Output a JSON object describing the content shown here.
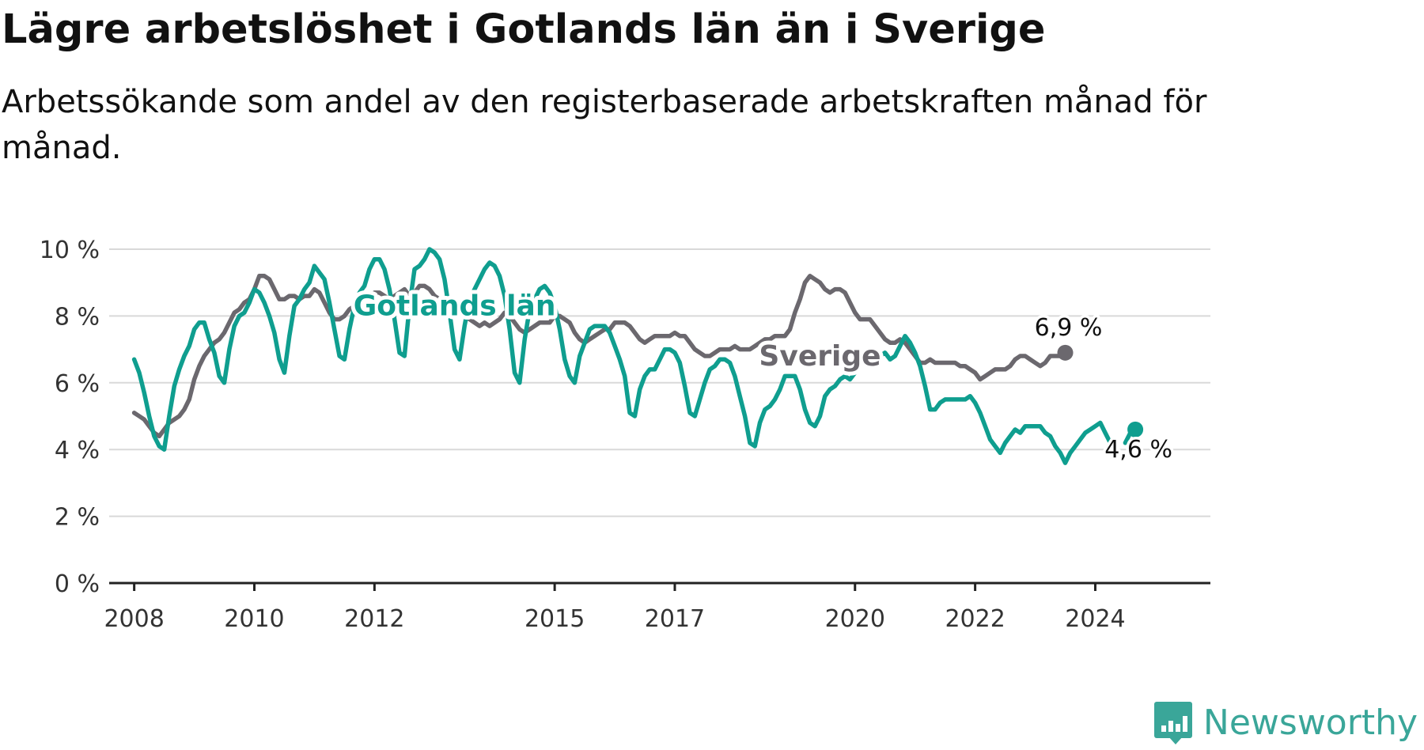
{
  "title": "Lägre arbetslöshet i Gotlands län än i Sverige",
  "subtitle": "Arbetssökande som andel av den registerbaserade arbetskraften månad för månad.",
  "logo": {
    "text": "Newsworthy",
    "icon": "chat-bar-chart-icon",
    "color": "#3aa699"
  },
  "chart_data": {
    "type": "line",
    "x_ticks": [
      "2008",
      "2010",
      "2012",
      "2015",
      "2017",
      "2020",
      "2022",
      "2024"
    ],
    "y_ticks": [
      "0 %",
      "2 %",
      "4 %",
      "6 %",
      "8 %",
      "10 %"
    ],
    "ylim": [
      0,
      10
    ],
    "xlim": [
      "2007-08",
      "2025-12"
    ],
    "grid": true,
    "x_start": "2008-01",
    "series": [
      {
        "name": "Sverige",
        "color": "#6b686e",
        "end_label": "6,9 %",
        "values": [
          5.1,
          5.0,
          4.9,
          4.7,
          4.5,
          4.4,
          4.6,
          4.8,
          4.9,
          5.0,
          5.2,
          5.5,
          6.1,
          6.5,
          6.8,
          7.0,
          7.2,
          7.3,
          7.5,
          7.8,
          8.1,
          8.2,
          8.4,
          8.5,
          8.8,
          9.2,
          9.2,
          9.1,
          8.8,
          8.5,
          8.5,
          8.6,
          8.6,
          8.5,
          8.6,
          8.6,
          8.8,
          8.7,
          8.4,
          8.1,
          7.9,
          7.9,
          8.0,
          8.2,
          8.3,
          8.2,
          8.3,
          8.6,
          8.7,
          8.7,
          8.6,
          8.5,
          8.6,
          8.7,
          8.8,
          8.6,
          8.7,
          8.9,
          8.9,
          8.8,
          8.6,
          8.5,
          8.4,
          8.3,
          8.2,
          8.1,
          8.0,
          7.9,
          7.8,
          7.7,
          7.8,
          7.7,
          7.8,
          7.9,
          8.1,
          8.0,
          7.8,
          7.6,
          7.5,
          7.6,
          7.7,
          7.8,
          7.8,
          7.8,
          8.0,
          8.0,
          7.9,
          7.8,
          7.5,
          7.3,
          7.2,
          7.3,
          7.4,
          7.5,
          7.6,
          7.6,
          7.8,
          7.8,
          7.8,
          7.7,
          7.5,
          7.3,
          7.2,
          7.3,
          7.4,
          7.4,
          7.4,
          7.4,
          7.5,
          7.4,
          7.4,
          7.2,
          7.0,
          6.9,
          6.8,
          6.8,
          6.9,
          7.0,
          7.0,
          7.0,
          7.1,
          7.0,
          7.0,
          7.0,
          7.1,
          7.2,
          7.3,
          7.3,
          7.4,
          7.4,
          7.4,
          7.6,
          8.1,
          8.5,
          9.0,
          9.2,
          9.1,
          9.0,
          8.8,
          8.7,
          8.8,
          8.8,
          8.7,
          8.4,
          8.1,
          7.9,
          7.9,
          7.9,
          7.7,
          7.5,
          7.3,
          7.2,
          7.2,
          7.3,
          7.2,
          7.0,
          6.8,
          6.6,
          6.6,
          6.7,
          6.6,
          6.6,
          6.6,
          6.6,
          6.6,
          6.5,
          6.5,
          6.4,
          6.3,
          6.1,
          6.2,
          6.3,
          6.4,
          6.4,
          6.4,
          6.5,
          6.7,
          6.8,
          6.8,
          6.7,
          6.6,
          6.5,
          6.6,
          6.8,
          6.8,
          6.8,
          6.9
        ]
      },
      {
        "name": "Gotlands län",
        "color": "#0f9e8f",
        "end_label": "4,6 %",
        "values": [
          6.7,
          6.3,
          5.7,
          5.0,
          4.4,
          4.1,
          4.0,
          5.0,
          5.9,
          6.4,
          6.8,
          7.1,
          7.6,
          7.8,
          7.8,
          7.3,
          6.9,
          6.2,
          6.0,
          7.0,
          7.7,
          8.0,
          8.1,
          8.4,
          8.8,
          8.7,
          8.4,
          8.0,
          7.5,
          6.7,
          6.3,
          7.4,
          8.3,
          8.5,
          8.8,
          9.0,
          9.5,
          9.3,
          9.1,
          8.4,
          7.6,
          6.8,
          6.7,
          7.6,
          8.3,
          8.7,
          8.9,
          9.4,
          9.7,
          9.7,
          9.4,
          8.8,
          7.9,
          6.9,
          6.8,
          8.3,
          9.4,
          9.5,
          9.7,
          10.0,
          9.9,
          9.7,
          9.1,
          8.1,
          7.0,
          6.7,
          7.7,
          8.5,
          8.8,
          9.1,
          9.4,
          9.6,
          9.5,
          9.2,
          8.6,
          7.6,
          6.3,
          6.0,
          7.3,
          8.2,
          8.5,
          8.8,
          8.9,
          8.7,
          8.3,
          7.6,
          6.7,
          6.2,
          6.0,
          6.8,
          7.2,
          7.6,
          7.7,
          7.7,
          7.7,
          7.5,
          7.1,
          6.7,
          6.2,
          5.1,
          5.0,
          5.8,
          6.2,
          6.4,
          6.4,
          6.7,
          7.0,
          7.0,
          6.9,
          6.6,
          5.9,
          5.1,
          5.0,
          5.5,
          6.0,
          6.4,
          6.5,
          6.7,
          6.7,
          6.6,
          6.2,
          5.6,
          5.0,
          4.2,
          4.1,
          4.8,
          5.2,
          5.3,
          5.5,
          5.8,
          6.2,
          6.2,
          6.2,
          5.8,
          5.2,
          4.8,
          4.7,
          5.0,
          5.6,
          5.8,
          5.9,
          6.1,
          6.2,
          6.1,
          6.3,
          6.8,
          6.8,
          6.7,
          6.6,
          6.8,
          6.9,
          6.7,
          6.8,
          7.1,
          7.4,
          7.2,
          6.9,
          6.5,
          5.9,
          5.2,
          5.2,
          5.4,
          5.5,
          5.5,
          5.5,
          5.5,
          5.5,
          5.6,
          5.4,
          5.1,
          4.7,
          4.3,
          4.1,
          3.9,
          4.2,
          4.4,
          4.6,
          4.5,
          4.7,
          4.7,
          4.7,
          4.7,
          4.5,
          4.4,
          4.1,
          3.9,
          3.6,
          3.9,
          4.1,
          4.3,
          4.5,
          4.6,
          4.7,
          4.8,
          4.5,
          4.2,
          null,
          null,
          4.2,
          4.5,
          4.6
        ]
      }
    ],
    "annotations": [
      {
        "text": "Gotlands län",
        "series": "Gotlands län",
        "x": "2013-05",
        "y": 8.3
      },
      {
        "text": "Sverige",
        "series": "Sverige",
        "x": "2019-06",
        "y": 6.8
      }
    ]
  }
}
